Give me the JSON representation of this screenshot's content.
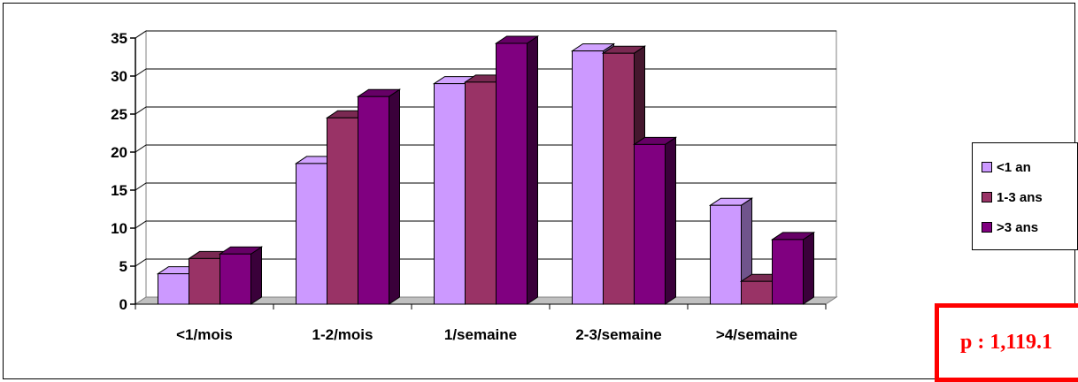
{
  "chart_data": {
    "type": "bar",
    "categories": [
      "<1/mois",
      "1-2/mois",
      "1/semaine",
      "2-3/semaine",
      ">4/semaine"
    ],
    "series": [
      {
        "name": "<1 an",
        "values": [
          4,
          18.5,
          29,
          33.3,
          13
        ],
        "color": "#cc99ff"
      },
      {
        "name": "1-3 ans",
        "values": [
          6,
          24.5,
          29.2,
          33,
          3
        ],
        "color": "#993366"
      },
      {
        "name": ">3 ans",
        "values": [
          6.6,
          27.3,
          34.3,
          21,
          8.5
        ],
        "color": "#800080"
      }
    ],
    "yticks": [
      "0",
      "5",
      "10",
      "15",
      "20",
      "25",
      "30",
      "35"
    ],
    "ylim": [
      0,
      35
    ],
    "grid": true,
    "legend_position": "right",
    "title": "",
    "xlabel": "",
    "ylabel": ""
  },
  "annotation": {
    "text": "p : 1,119.1",
    "color": "#ff0000"
  }
}
